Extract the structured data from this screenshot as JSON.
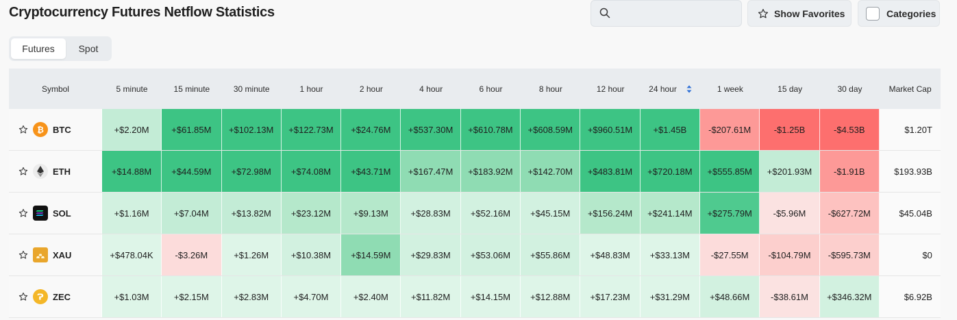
{
  "page": {
    "title": "Cryptocurrency Futures Netflow Statistics"
  },
  "search": {
    "placeholder": "",
    "value": ""
  },
  "toolbar": {
    "favorites_label": "Show Favorites",
    "categories_label": "Categories"
  },
  "market_tabs": [
    {
      "label": "Futures",
      "active": true
    },
    {
      "label": "Spot",
      "active": false
    }
  ],
  "table": {
    "columns": [
      "Symbol",
      "5 minute",
      "15 minute",
      "30 minute",
      "1 hour",
      "2 hour",
      "4 hour",
      "6 hour",
      "8 hour",
      "12 hour",
      "24 hour",
      "1 week",
      "15 day",
      "30 day",
      "Market Cap"
    ],
    "sorted_column": "24 hour",
    "rows": [
      {
        "symbol": "BTC",
        "icon": "bitcoin-icon",
        "values": [
          "+$2.20M",
          "+$61.85M",
          "+$102.13M",
          "+$122.73M",
          "+$24.76M",
          "+$537.30M",
          "+$610.78M",
          "+$608.59M",
          "+$960.51M",
          "+$1.45B",
          "-$207.61M",
          "-$1.25B",
          "-$4.53B"
        ],
        "colors": [
          "#c3ecd6",
          "#3dc484",
          "#3dc484",
          "#3dc484",
          "#3dc484",
          "#3dc484",
          "#3dc484",
          "#3dc484",
          "#3dc484",
          "#3dc484",
          "#fd9997",
          "#fd6f6e",
          "#fd6f6e"
        ],
        "market_cap": "$1.20T"
      },
      {
        "symbol": "ETH",
        "icon": "ethereum-icon",
        "values": [
          "+$14.88M",
          "+$44.59M",
          "+$72.98M",
          "+$74.08M",
          "+$43.71M",
          "+$167.47M",
          "+$183.92M",
          "+$142.70M",
          "+$483.81M",
          "+$720.18M",
          "+$555.85M",
          "+$201.93M",
          "-$1.91B"
        ],
        "colors": [
          "#3dc484",
          "#3dc484",
          "#3dc484",
          "#3dc484",
          "#3dc484",
          "#8fdcb3",
          "#8fdcb3",
          "#8fdcb3",
          "#3dc484",
          "#3dc484",
          "#3dc484",
          "#c3ecd6",
          "#fd9997"
        ],
        "market_cap": "$193.93B"
      },
      {
        "symbol": "SOL",
        "icon": "solana-icon",
        "values": [
          "+$1.16M",
          "+$7.04M",
          "+$13.82M",
          "+$23.12M",
          "+$9.13M",
          "+$28.83M",
          "+$52.16M",
          "+$45.15M",
          "+$156.24M",
          "+$241.14M",
          "+$275.79M",
          "-$5.96M",
          "-$627.72M"
        ],
        "colors": [
          "#d2f1e0",
          "#c3ecd6",
          "#c3ecd6",
          "#b5e8cb",
          "#b5e8cb",
          "#d2f1e0",
          "#d2f1e0",
          "#d2f1e0",
          "#b5e8cb",
          "#b5e8cb",
          "#4fca8f",
          "#fbe2e1",
          "#fdc2c0"
        ],
        "market_cap": "$45.04B"
      },
      {
        "symbol": "XAU",
        "icon": "gold-bars-icon",
        "values": [
          "+$478.04K",
          "-$3.26M",
          "+$1.26M",
          "+$10.38M",
          "+$14.59M",
          "+$29.83M",
          "+$53.06M",
          "+$55.86M",
          "+$48.83M",
          "+$33.13M",
          "-$27.55M",
          "-$104.79M",
          "-$595.73M"
        ],
        "colors": [
          "#def5e8",
          "#fcdcdb",
          "#def5e8",
          "#d2f1e0",
          "#8fdcb3",
          "#d2f1e0",
          "#d2f1e0",
          "#d2f1e0",
          "#def5e8",
          "#def5e8",
          "#fcdcdb",
          "#fccfcd",
          "#fccfcd"
        ],
        "market_cap": "$0"
      },
      {
        "symbol": "ZEC",
        "icon": "zcash-icon",
        "values": [
          "+$1.03M",
          "+$2.15M",
          "+$2.83M",
          "+$4.70M",
          "+$2.40M",
          "+$11.82M",
          "+$14.15M",
          "+$12.88M",
          "+$17.23M",
          "+$31.29M",
          "+$48.66M",
          "-$38.61M",
          "+$346.32M"
        ],
        "colors": [
          "#def5e8",
          "#def5e8",
          "#def5e8",
          "#def5e8",
          "#def5e8",
          "#def5e8",
          "#def5e8",
          "#def5e8",
          "#def5e8",
          "#def5e8",
          "#d2f1e0",
          "#fbe2e1",
          "#d2f1e0"
        ],
        "market_cap": "$6.92B"
      }
    ]
  }
}
